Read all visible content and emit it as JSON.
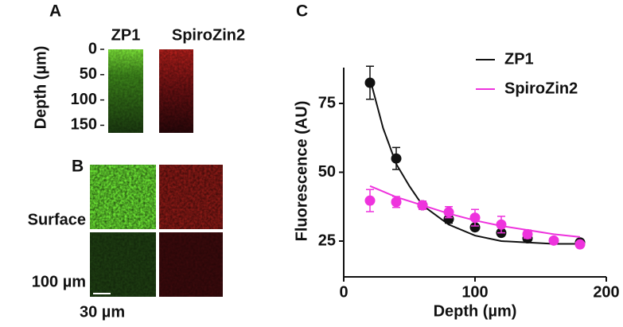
{
  "figure": {
    "panel_a": {
      "label": "A",
      "ylabel": "Depth (µm)",
      "columns": [
        "ZP1",
        "SpiroZin2"
      ],
      "ylim": [
        0,
        165
      ],
      "yticks": [
        0,
        50,
        100,
        150
      ]
    },
    "panel_b": {
      "label": "B",
      "rows": [
        "Surface",
        "100 µm"
      ],
      "scale_bar": "30 µm"
    }
  },
  "chart_data": {
    "type": "scatter",
    "label": "C",
    "xlabel": "Depth (µm)",
    "ylabel": "Fluorescence (AU)",
    "xlim": [
      0,
      200
    ],
    "xticks": [
      0,
      100,
      200
    ],
    "ylim": [
      12,
      88
    ],
    "yticks": [
      25,
      50,
      75
    ],
    "legend": "upper right",
    "x": [
      20,
      40,
      60,
      80,
      100,
      120,
      140,
      160,
      180
    ],
    "series": [
      {
        "name": "ZP1",
        "color": "#111111",
        "values": [
          82.5,
          55,
          38,
          33,
          30,
          28,
          26,
          null,
          24.5
        ],
        "errors": [
          6,
          4,
          1.5,
          1.5,
          1,
          1,
          1,
          null,
          1
        ],
        "fit": {
          "x": [
            20,
            30,
            40,
            50,
            60,
            80,
            100,
            120,
            140,
            160,
            180
          ],
          "values": [
            84,
            66,
            53,
            45,
            38,
            31,
            27,
            25,
            24.5,
            24,
            24
          ]
        }
      },
      {
        "name": "SpiroZin2",
        "color": "#ee33dd",
        "values": [
          39.7,
          39.2,
          38,
          35.5,
          33.5,
          31,
          27.5,
          25.2,
          23.8
        ],
        "errors": [
          4,
          2,
          1.5,
          2,
          3,
          3,
          1.5,
          1,
          1
        ],
        "fit": {
          "x": [
            20,
            30,
            40,
            50,
            60,
            80,
            100,
            120,
            140,
            160,
            180
          ],
          "values": [
            45,
            43,
            41,
            39.5,
            38,
            35,
            32.5,
            30.5,
            29,
            27.5,
            26.5
          ]
        }
      }
    ]
  }
}
